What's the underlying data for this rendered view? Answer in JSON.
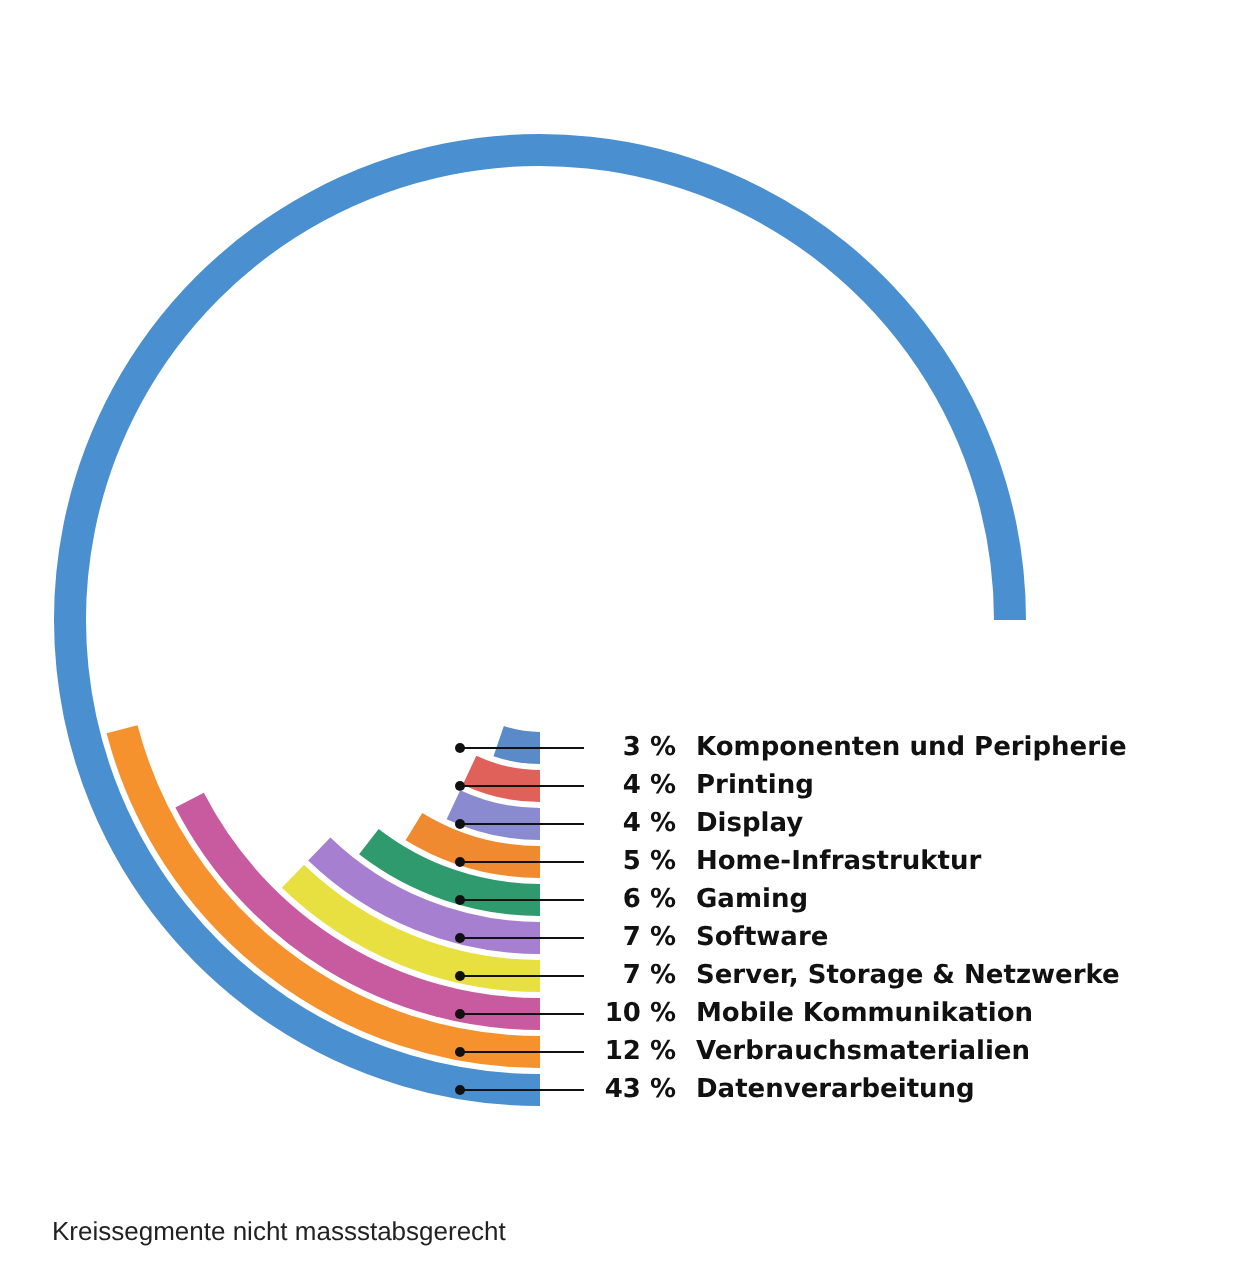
{
  "chart_data": {
    "type": "other",
    "categories": [
      "Komponenten und Peripherie",
      "Printing",
      "Display",
      "Home-Infrastruktur",
      "Gaming",
      "Software",
      "Server, Storage & Netzwerke",
      "Mobile Kommunikation",
      "Verbrauchsmaterialien",
      "Datenverarbeitung"
    ],
    "values": [
      3,
      4,
      4,
      5,
      6,
      7,
      7,
      10,
      12,
      43
    ],
    "value_labels": [
      "3 %",
      "4 %",
      "4 %",
      "5 %",
      "6 %",
      "7 %",
      "7 %",
      "10 %",
      "12 %",
      "43 %"
    ],
    "colors": [
      "#5a8ac8",
      "#e0605a",
      "#8a8ad0",
      "#f08a30",
      "#2e9a6e",
      "#a77fd0",
      "#e8e040",
      "#c85aa0",
      "#f5922e",
      "#4a8fd0"
    ],
    "annotations": [
      "Kreissegmente nicht massstabsgerecht"
    ]
  }
}
